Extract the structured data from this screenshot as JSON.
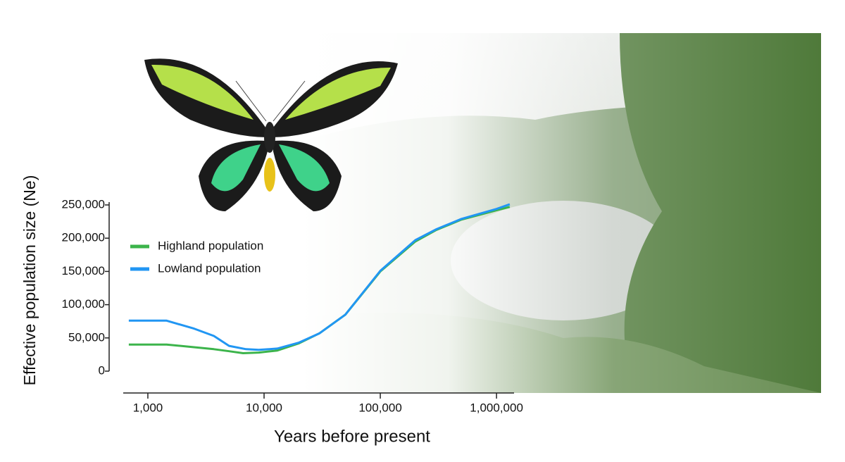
{
  "chart_data": {
    "type": "line",
    "x_label": "Years before present",
    "y_label": "Effective population size (Ne)",
    "x_log": true,
    "xlim": [
      614,
      1415000
    ],
    "xticks": [
      {
        "value": 1000,
        "label": "1,000"
      },
      {
        "value": 10000,
        "label": "10,000"
      },
      {
        "value": 100000,
        "label": "100,000"
      },
      {
        "value": 1000000,
        "label": "1,000,000"
      }
    ],
    "ylim": [
      0,
      250000
    ],
    "yticks": [
      0,
      {
        "value": 50000,
        "label": "50,000"
      },
      {
        "value": 100000,
        "label": "100,000"
      },
      {
        "value": 150000,
        "label": "150,000"
      },
      {
        "value": 200000,
        "label": "200,000"
      },
      {
        "value": 250000,
        "label": "250,000"
      }
    ],
    "legend": "upper-left",
    "series": [
      {
        "name": "Highland population",
        "color": "#3cb44b",
        "x": [
          686,
          1450,
          2500,
          3700,
          5000,
          6600,
          9000,
          13000,
          20000,
          30000,
          50000,
          100000,
          200000,
          300000,
          500000,
          1000000,
          1300000
        ],
        "values": [
          40000,
          40000,
          36000,
          33000,
          30000,
          27000,
          28000,
          31000,
          42000,
          57000,
          85000,
          150000,
          195000,
          212000,
          228000,
          242000,
          247000
        ]
      },
      {
        "name": "Lowland population",
        "color": "#2196f3",
        "x": [
          686,
          1450,
          2500,
          3700,
          5000,
          7000,
          9000,
          13000,
          20000,
          30000,
          50000,
          100000,
          200000,
          300000,
          500000,
          1000000,
          1300000
        ],
        "values": [
          76000,
          76000,
          64000,
          53000,
          38000,
          33000,
          32000,
          34000,
          43000,
          57000,
          85000,
          151000,
          197000,
          213000,
          229000,
          244000,
          251000
        ]
      }
    ]
  }
}
